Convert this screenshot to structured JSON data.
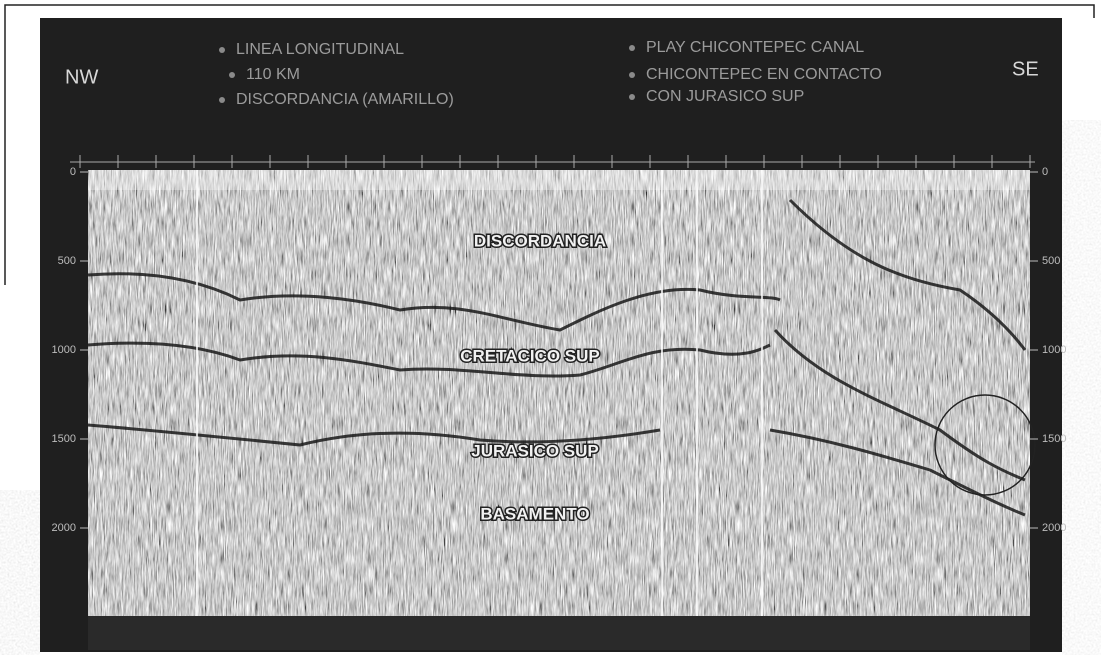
{
  "header": {
    "left_direction": "NW",
    "right_direction": "SE",
    "notes_left": [
      "LINEA LONGITUDINAL",
      "110 KM",
      "DISCORDANCIA (AMARILLO)"
    ],
    "notes_right": [
      "PLAY CHICONTEPEC CANAL",
      "CHICONTEPEC EN CONTACTO",
      "CON JURASICO SUP"
    ]
  },
  "section": {
    "depth_ticks": [
      0,
      500,
      1000,
      1500,
      2000
    ],
    "horizons": [
      "DISCORDANCIA",
      "CRETACICO SUP",
      "JURASICO SUP",
      "BASAMENTO"
    ]
  }
}
